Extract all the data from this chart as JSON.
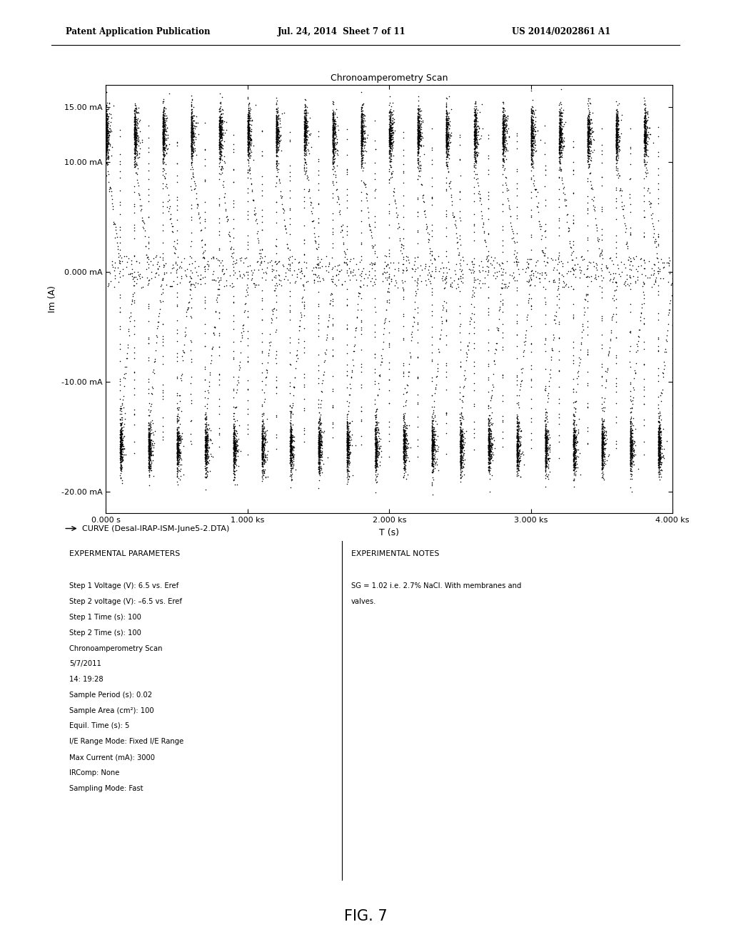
{
  "header_left": "Patent Application Publication",
  "header_mid": "Jul. 24, 2014  Sheet 7 of 11",
  "header_right": "US 2014/0202861 A1",
  "chart_title": "Chronoamperometry Scan",
  "xlabel": "T (s)",
  "ylabel": "Im (A)",
  "ytick_vals": [
    -20,
    -10,
    0,
    10,
    15
  ],
  "ytick_labels": [
    "-20.00 mA",
    "-10.00 mA",
    "0.000 mA",
    "10.00 mA",
    "15.00 mA"
  ],
  "xtick_vals": [
    0,
    1000,
    2000,
    3000,
    4000
  ],
  "xtick_labels": [
    "0.000 s",
    "1.000 ks",
    "2.000 ks",
    "3.000 ks",
    "4.000 ks"
  ],
  "xmin": 0,
  "xmax": 4000,
  "ymin": -22,
  "ymax": 17,
  "legend_label": "CURVE (Desal-IRAP-ISM-June5-2.DTA)",
  "period": 200,
  "num_cycles": 20,
  "high_current": 12.5,
  "low_current": -16.0,
  "exp_params_title": "EXPERMENTAL PARAMETERS",
  "exp_params_lines": [
    "",
    "Step 1 Voltage (V): 6.5 vs. Eref",
    "Step 2 voltage (V): –6.5 vs. Eref",
    "Step 1 Time (s): 100",
    "Step 2 Time (s): 100",
    "Chronoamperometry Scan",
    "5/7/2011",
    "14: 19:28",
    "Sample Period (s): 0.02",
    "Sample Area (cm²): 100",
    "Equil. Time (s): 5",
    "I/E Range Mode: Fixed I/E Range",
    "Max Current (mA): 3000",
    "IRComp: None",
    "Sampling Mode: Fast"
  ],
  "exp_notes_title": "EXPERIMENTAL NOTES",
  "exp_notes_lines": [
    "",
    "SG = 1.02 i.e. 2.7% NaCl. With membranes and",
    "valves."
  ],
  "fig_label": "FIG. 7",
  "background_color": "#ffffff",
  "text_color": "#000000"
}
